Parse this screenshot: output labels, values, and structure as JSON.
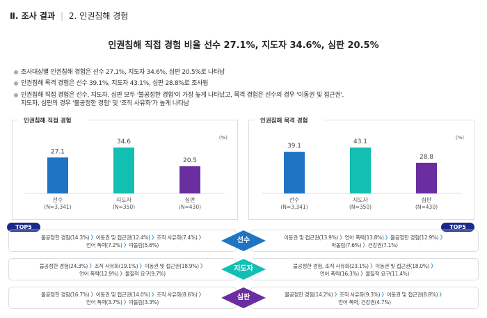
{
  "header": {
    "section": "Ⅱ. 조사 결과",
    "subsection": "2. 인권침해 경험"
  },
  "title": "인권침해 직접 경험 비율 선수 27.1%, 지도자 34.6%, 심판 20.5%",
  "bullets": [
    "조사대상별 인권침해 경험은 선수 27.1%, 지도자 34.6%, 심판 20.5%로 나타남",
    "인권침해 목격 경험은 선수 39.1%, 지도자 43.1%, 심판 28.8%로 조사됨",
    "인권침해 직접 경험은 선수, 지도자, 심판 모두 '불공정한 경험'이 가장 높게 나타났고, 목격 경험은 선수의 경우 '이동권 및 접근권',",
    "지도자, 심판의 경우 '불공정한 경험' 및 '조직 사유화'가 높게 나타남"
  ],
  "colors": {
    "선수": "#1f74c4",
    "지도자": "#13bfb2",
    "심판": "#6a2ea0",
    "top5": "#1a2a8a"
  },
  "chart_data": [
    {
      "type": "bar",
      "title": "인권침해 직접 경험",
      "unit": "(%)",
      "categories": [
        "선수",
        "지도자",
        "심판"
      ],
      "sublabels": [
        "(N=3,341)",
        "(N=350)",
        "(N=430)"
      ],
      "values": [
        27.1,
        34.6,
        20.5
      ],
      "value_labels": [
        "27.1",
        "34.6",
        "20.5"
      ]
    },
    {
      "type": "bar",
      "title": "인권침해 목격 경험",
      "unit": "(%)",
      "categories": [
        "선수",
        "지도자",
        "심판"
      ],
      "sublabels": [
        "(N=3,341)",
        "(N=350)",
        "(N=430)"
      ],
      "values": [
        39.1,
        43.1,
        28.8
      ],
      "value_labels": [
        "39.1",
        "43.1",
        "28.8"
      ]
    }
  ],
  "top5_label": "TOP5",
  "groups": [
    {
      "name": "선수",
      "left": [
        "불공정한 경험(14.3%)",
        "이동권 및 접근권(12.4%)",
        "조직 사유화(7.4%)",
        "언어 폭력(7.2%)",
        "따돌림(5.6%)"
      ],
      "right": [
        "이동권 및 접근권(13.9%)",
        "언어 폭력(13.8%)",
        "불공정한 경험(12.9%)",
        "따돌림(7.6%)",
        "건강권(7.1%)"
      ]
    },
    {
      "name": "지도자",
      "left": [
        "불공정한 경험(24.3%)",
        "조직 사유화(19.1%)",
        "이동권 및 접근권(18.9%)",
        "언어 폭력(12.9%)",
        "물질적 요구(9.7%)"
      ],
      "right": [
        "불공정한 경험, 조직 사유화(23.1%)",
        "이동권 및 접근권(18.0%)",
        "언어 폭력(16.3%)",
        "물질적 요구(11.4%)"
      ]
    },
    {
      "name": "심판",
      "left": [
        "불공정한 경험(16.7%)",
        "이동권 및 접근권(14.0%)",
        "조직 사유화(8.6%)",
        "언어 폭력(3.7%)",
        "따돌림(3.3%)"
      ],
      "right": [
        "불공정한 경험(14.2%)",
        "조직 사유화(9.3%)",
        "이동권 및 접근권(8.8%)",
        "언어 폭력, 건강권(4.7%)"
      ]
    }
  ]
}
